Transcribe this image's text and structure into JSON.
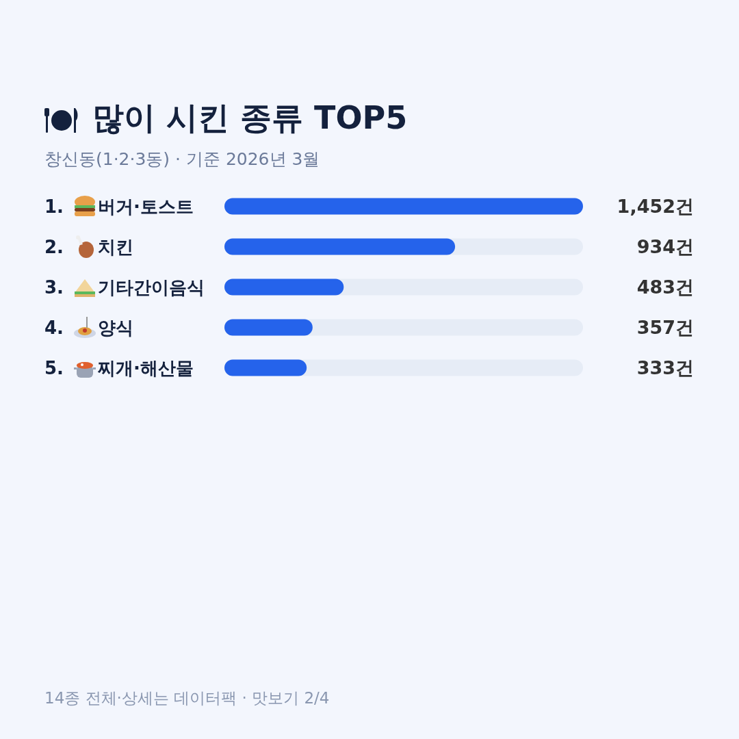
{
  "chart_data": {
    "type": "bar",
    "orientation": "horizontal",
    "title": "많이 시킨 종류 TOP5",
    "subtitle": "창신동(1·2·3동) · 기준 2026년 3월",
    "categories": [
      "1. 버거·토스트",
      "2. 치킨",
      "3. 기타간이음식",
      "4. 양식",
      "5. 찌개·해산물"
    ],
    "values": [
      1452,
      934,
      483,
      357,
      333
    ],
    "value_labels": [
      "1,452건",
      "934건",
      "483건",
      "357건",
      "333건"
    ],
    "color": "#2563eb",
    "annotations": [
      "14종 전체·상세는 데이터팩 · 맛보기 2/4"
    ]
  }
}
